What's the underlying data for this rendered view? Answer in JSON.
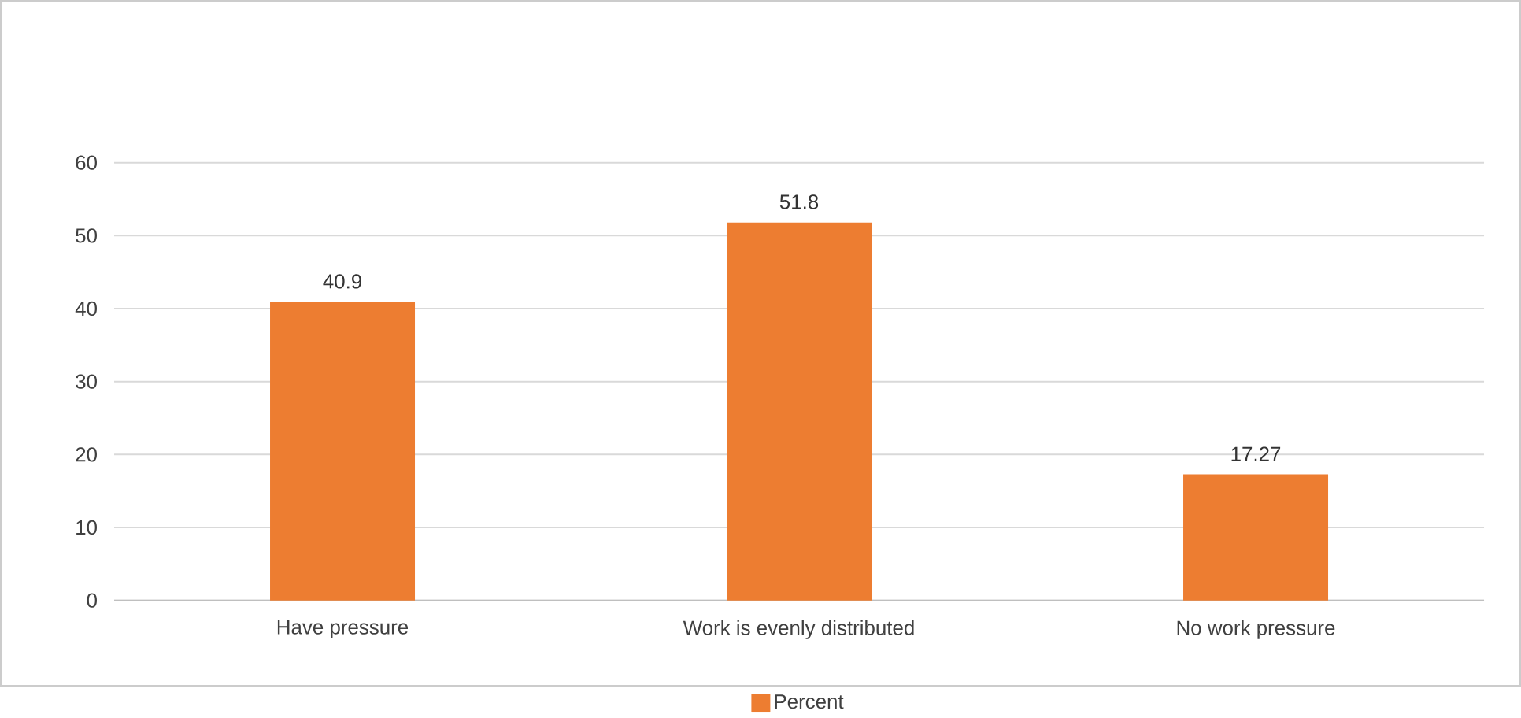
{
  "chart_data": {
    "type": "bar",
    "categories": [
      "Have pressure",
      "Work is evenly distributed",
      "No work pressure"
    ],
    "series": [
      {
        "name": "Percent",
        "color": "#ed7d31",
        "values": [
          40.9,
          51.8,
          17.27
        ]
      }
    ],
    "ylim": [
      0,
      60
    ],
    "yticks": [
      0,
      10,
      20,
      30,
      40,
      50,
      60
    ],
    "grid": "y",
    "legend": "bottom",
    "data_labels": true
  }
}
